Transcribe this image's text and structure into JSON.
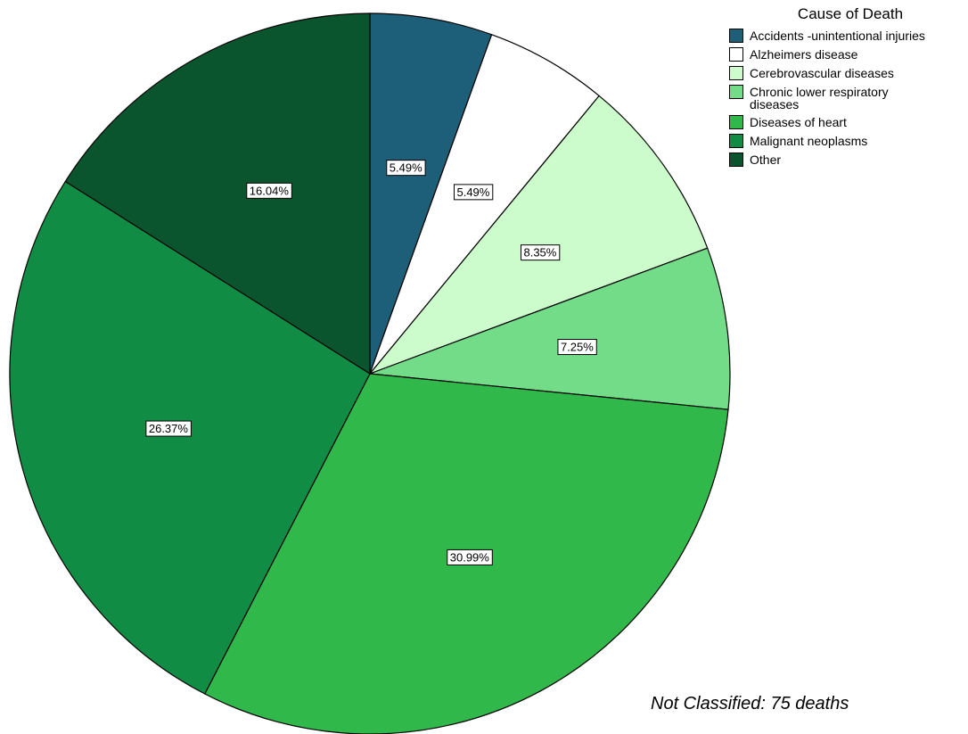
{
  "chart_data": {
    "type": "pie",
    "title": "",
    "legend_title": "Cause of Death",
    "legend_placement": "top-right",
    "start_angle_deg": 0,
    "direction": "clockwise",
    "slices": [
      {
        "label": "Accidents -unintentional injuries",
        "value": 5.49,
        "display": "5.49%",
        "color": "#1d5f78"
      },
      {
        "label": "Alzheimers disease",
        "value": 5.49,
        "display": "5.49%",
        "color": "#ffffff"
      },
      {
        "label": "Cerebrovascular diseases",
        "value": 8.35,
        "display": "8.35%",
        "color": "#ccfccc"
      },
      {
        "label": "Chronic lower respiratory diseases",
        "value": 7.25,
        "display": "7.25%",
        "color": "#72dc88"
      },
      {
        "label": "Diseases of heart",
        "value": 30.99,
        "display": "30.99%",
        "color": "#30b84a"
      },
      {
        "label": "Malignant neoplasms",
        "value": 26.37,
        "display": "26.37%",
        "color": "#108c44"
      },
      {
        "label": "Other",
        "value": 16.04,
        "display": "16.04%",
        "color": "#0a552d"
      }
    ]
  },
  "footnote": "Not Classified: 75 deaths"
}
